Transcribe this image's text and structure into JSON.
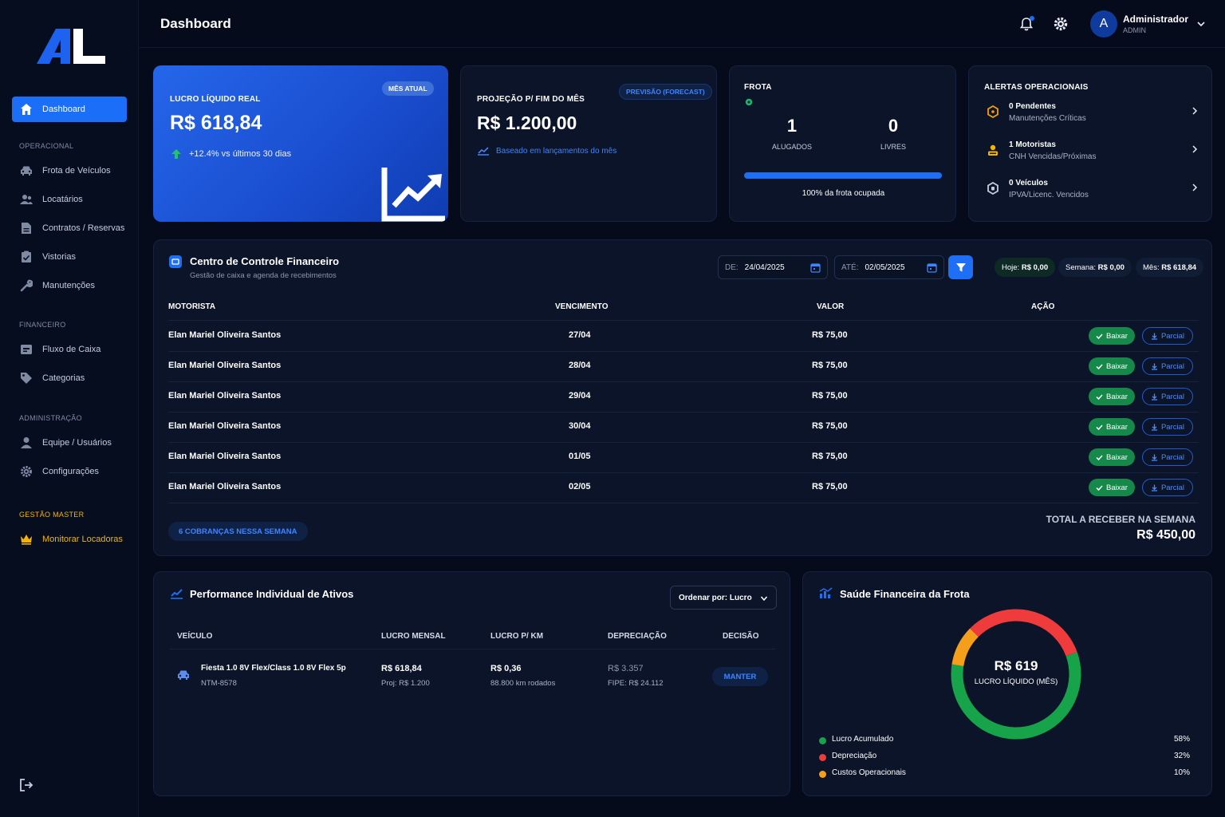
{
  "header": {
    "title": "Dashboard",
    "user_name": "Administrador",
    "user_role": "ADMIN",
    "avatar_initial": "A"
  },
  "sidebar": {
    "items": [
      {
        "label": "Dashboard",
        "icon": "home-icon",
        "active": true
      },
      {
        "label": "Frota de Veículos",
        "icon": "car-icon"
      },
      {
        "label": "Locatários",
        "icon": "users-icon"
      },
      {
        "label": "Contratos / Reservas",
        "icon": "document-icon"
      },
      {
        "label": "Vistorias",
        "icon": "clipboard-check-icon"
      },
      {
        "label": "Manutenções",
        "icon": "wrench-icon"
      },
      {
        "label": "Fluxo de Caixa",
        "icon": "cash-icon"
      },
      {
        "label": "Categorias",
        "icon": "tag-icon"
      },
      {
        "label": "Equipe / Usuários",
        "icon": "user-icon"
      },
      {
        "label": "Configurações",
        "icon": "gear-icon"
      },
      {
        "label": "Monitorar Locadoras",
        "icon": "crown-icon"
      }
    ],
    "sections": {
      "operacional": "OPERACIONAL",
      "financeiro": "FINANCEIRO",
      "administracao": "ADMINISTRAÇÃO",
      "gestao_master": "GESTÃO MASTER"
    }
  },
  "kpi": {
    "lucro": {
      "label": "LUCRO LÍQUIDO REAL",
      "badge": "MÊS ATUAL",
      "value": "R$ 618,84",
      "trend": "+12.4% vs últimos 30 dias"
    },
    "projecao": {
      "label": "PROJEÇÃO P/ FIM DO MÊS",
      "badge": "PREVISÃO (FORECAST)",
      "value": "R$ 1.200,00",
      "note": "Baseado em lançamentos do mês"
    },
    "frota": {
      "label": "FROTA",
      "alugados": "1",
      "alugados_label": "ALUGADOS",
      "livres": "0",
      "livres_label": "LIVRES",
      "occupancy": 1.0,
      "occupancy_text": "100% da frota ocupada"
    },
    "alertas": {
      "label": "ALERTAS OPERACIONAIS",
      "items": [
        {
          "title": "0 Pendentes",
          "sub": "Manutenções Críticas",
          "icon": "alert-hexagon-icon",
          "color": "#f59e0b"
        },
        {
          "title": "1 Motoristas",
          "sub": "CNH Vencidas/Próximas",
          "icon": "driver-icon",
          "color": "#f5b400"
        },
        {
          "title": "0 Veículos",
          "sub": "IPVA/Licenc. Vencidos",
          "icon": "shield-icon",
          "color": "#c5cce0"
        }
      ]
    }
  },
  "finance": {
    "title": "Centro de Controle Financeiro",
    "subtitle": "Gestão de caixa e agenda de recebimentos",
    "from_label": "DE:",
    "from_value": "24/04/2025",
    "to_label": "ATÉ:",
    "to_value": "02/05/2025",
    "stats": {
      "hoje_label": "Hoje:",
      "hoje": "R$ 0,00",
      "semana_label": "Semana:",
      "semana": "R$ 0,00",
      "mes_label": "Mês:",
      "mes": "R$ 618,84"
    },
    "columns": [
      "MOTORISTA",
      "VENCIMENTO",
      "VALOR",
      "AÇÃO"
    ],
    "rows": [
      {
        "motorista": "Elan Mariel Oliveira Santos",
        "vencimento": "27/04",
        "valor": "R$ 75,00"
      },
      {
        "motorista": "Elan Mariel Oliveira Santos",
        "vencimento": "28/04",
        "valor": "R$ 75,00"
      },
      {
        "motorista": "Elan Mariel Oliveira Santos",
        "vencimento": "29/04",
        "valor": "R$ 75,00"
      },
      {
        "motorista": "Elan Mariel Oliveira Santos",
        "vencimento": "30/04",
        "valor": "R$ 75,00"
      },
      {
        "motorista": "Elan Mariel Oliveira Santos",
        "vencimento": "01/05",
        "valor": "R$ 75,00"
      },
      {
        "motorista": "Elan Mariel Oliveira Santos",
        "vencimento": "02/05",
        "valor": "R$ 75,00"
      }
    ],
    "baixar_label": "Baixar",
    "parcial_label": "Parcial",
    "week_count": "6 COBRANÇAS NESSA SEMANA",
    "total_label": "TOTAL A RECEBER NA SEMANA",
    "total_value": "R$ 450,00"
  },
  "performance": {
    "title": "Performance Individual de Ativos",
    "sort_label": "Ordenar por: Lucro",
    "columns": [
      "VEÍCULO",
      "LUCRO MENSAL",
      "LUCRO P/ KM",
      "DEPRECIAÇÃO",
      "DECISÃO"
    ],
    "rows": [
      {
        "vehicle": "Fiesta 1.0 8V Flex/Class 1.0 8V Flex 5p",
        "plate": "NTM-8578",
        "lucro": "R$ 618,84",
        "proj": "Proj: R$ 1.200",
        "lucro_km": "R$ 0,36",
        "km": "88.800 km rodados",
        "deprec": "R$ 3.357",
        "fipe": "FIPE: R$ 24.112",
        "decision": "MANTER"
      }
    ]
  },
  "health": {
    "title": "Saúde Financeira da Frota",
    "center_value": "R$ 619",
    "center_label": "LUCRO LÍQUIDO (MÊS)",
    "segments": [
      {
        "name": "Lucro Acumulado",
        "pct_text": "58%",
        "value": 58,
        "color": "#16a34a"
      },
      {
        "name": "Depreciação",
        "pct_text": "32%",
        "value": 32,
        "color": "#ef3b3b"
      },
      {
        "name": "Custos Operacionais",
        "pct_text": "10%",
        "value": 10,
        "color": "#f59e1b"
      }
    ]
  },
  "colors": {
    "accent": "#1e6ff5",
    "success": "#15884a",
    "gold": "#f5b400",
    "bg": "#050b1a"
  }
}
